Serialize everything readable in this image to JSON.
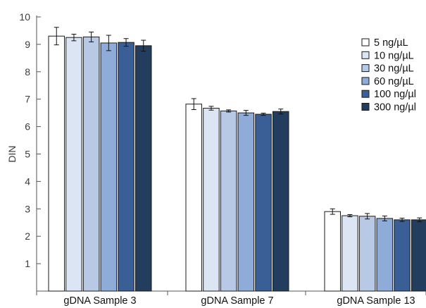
{
  "chart_data": {
    "type": "bar",
    "title": "",
    "xlabel": "",
    "ylabel": "DIN",
    "ylim": [
      0,
      10
    ],
    "yticks": [
      1,
      2,
      3,
      4,
      5,
      6,
      7,
      8,
      9,
      10
    ],
    "grid": false,
    "legend_position": "right",
    "categories": [
      "gDNA Sample 3",
      "gDNA Sample 7",
      "gDNA Sample 13"
    ],
    "series": [
      {
        "name": "5 ng/µL",
        "color": "#ffffff",
        "values": [
          9.3,
          6.82,
          2.9
        ],
        "errors": [
          0.32,
          0.2,
          0.1
        ]
      },
      {
        "name": "10 ng/µL",
        "color": "#dbe5f3",
        "values": [
          9.25,
          6.67,
          2.75
        ],
        "errors": [
          0.12,
          0.07,
          0.04
        ]
      },
      {
        "name": "30 ng/µL",
        "color": "#b7c9e5",
        "values": [
          9.27,
          6.57,
          2.73
        ],
        "errors": [
          0.18,
          0.04,
          0.1
        ]
      },
      {
        "name": "60 ng/µL",
        "color": "#8facd8",
        "values": [
          9.05,
          6.5,
          2.65
        ],
        "errors": [
          0.28,
          0.09,
          0.09
        ]
      },
      {
        "name": "100 ng/µl",
        "color": "#3a5f97",
        "values": [
          9.07,
          6.45,
          2.6
        ],
        "errors": [
          0.14,
          0.04,
          0.06
        ]
      },
      {
        "name": "300 ng/µl",
        "color": "#223d5e",
        "values": [
          8.95,
          6.55,
          2.6
        ],
        "errors": [
          0.2,
          0.09,
          0.07
        ]
      }
    ]
  }
}
